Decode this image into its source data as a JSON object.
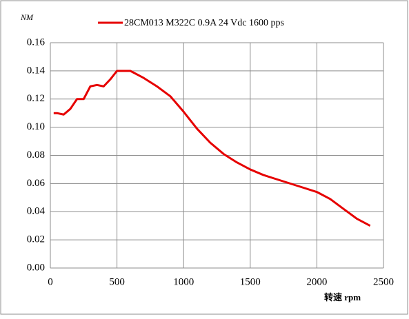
{
  "chart_data": {
    "type": "line",
    "y_label": "NM",
    "x_label": "转速 rpm",
    "x": [
      25,
      50,
      100,
      150,
      200,
      250,
      300,
      350,
      400,
      450,
      500,
      550,
      600,
      700,
      800,
      900,
      1000,
      1100,
      1200,
      1300,
      1400,
      1500,
      1600,
      1700,
      1800,
      1900,
      2000,
      2100,
      2200,
      2300,
      2400
    ],
    "series": [
      {
        "name": "28CM013 M322C 0.9A 24 Vdc  1600 pps",
        "color": "#e60000",
        "values": [
          0.11,
          0.11,
          0.109,
          0.113,
          0.12,
          0.12,
          0.129,
          0.13,
          0.129,
          0.134,
          0.14,
          0.14,
          0.14,
          0.135,
          0.129,
          0.122,
          0.111,
          0.099,
          0.089,
          0.081,
          0.075,
          0.07,
          0.066,
          0.063,
          0.06,
          0.057,
          0.054,
          0.049,
          0.042,
          0.035,
          0.03
        ]
      }
    ],
    "xlim": [
      0,
      2500
    ],
    "xticks": [
      0,
      500,
      1000,
      1500,
      2000,
      2500
    ],
    "ylim": [
      0,
      0.16
    ],
    "yticks": [
      {
        "value": 0,
        "label": "0.00"
      },
      {
        "value": 0.02,
        "label": "0.02"
      },
      {
        "value": 0.04,
        "label": "0.04"
      },
      {
        "value": 0.06,
        "label": "0.06"
      },
      {
        "value": 0.08,
        "label": "0.08"
      },
      {
        "value": 0.1,
        "label": "0.10"
      },
      {
        "value": 0.12,
        "label": "0.12"
      },
      {
        "value": 0.14,
        "label": "0.14"
      },
      {
        "value": 0.16,
        "label": "0.16"
      }
    ],
    "grid": true
  }
}
